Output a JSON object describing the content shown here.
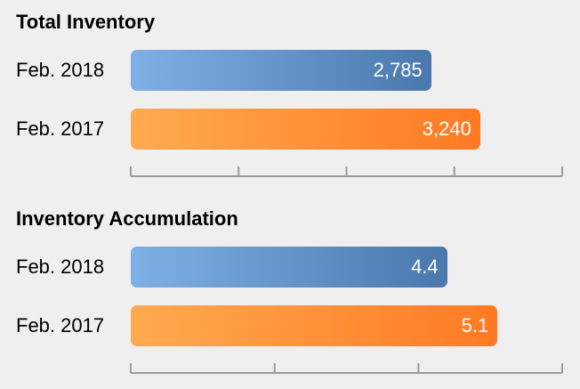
{
  "chart_data": [
    {
      "type": "bar",
      "orientation": "horizontal",
      "title": "Total Inventory",
      "categories": [
        "Feb. 2018",
        "Feb. 2017"
      ],
      "values": [
        2785,
        3240
      ],
      "value_labels": [
        "2,785",
        "3,240"
      ],
      "xlim": [
        0,
        4000
      ],
      "ticks": 4,
      "tick_labels_shown": false,
      "grid": false,
      "colors": [
        "#5f93cc",
        "#ff8c32"
      ]
    },
    {
      "type": "bar",
      "orientation": "horizontal",
      "title": "Inventory Accumulation",
      "categories": [
        "Feb. 2018",
        "Feb. 2017"
      ],
      "values": [
        4.4,
        5.1
      ],
      "value_labels": [
        "4.4",
        "5.1"
      ],
      "xlim": [
        0,
        6
      ],
      "ticks": 3,
      "tick_labels_shown": false,
      "grid": false,
      "colors": [
        "#5f93cc",
        "#ff8c32"
      ]
    }
  ]
}
